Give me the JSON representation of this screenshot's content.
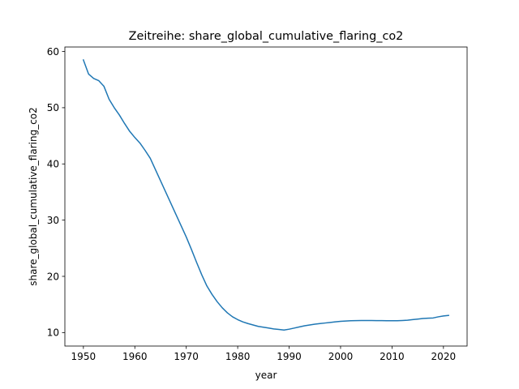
{
  "chart_data": {
    "type": "line",
    "title": "Zeitreihe: share_global_cumulative_flaring_co2",
    "xlabel": "year",
    "ylabel": "share_global_cumulative_flaring_co2",
    "xlim": [
      1946.4,
      2024.6
    ],
    "ylim": [
      7.6,
      60.8
    ],
    "x_ticks": [
      1950,
      1960,
      1970,
      1980,
      1990,
      2000,
      2010,
      2020
    ],
    "y_ticks": [
      10,
      20,
      30,
      40,
      50,
      60
    ],
    "grid": false,
    "legend": "none",
    "series": [
      {
        "color": "#1f77b4",
        "x": [
          1950,
          1951,
          1952,
          1953,
          1954,
          1955,
          1956,
          1957,
          1958,
          1959,
          1960,
          1961,
          1962,
          1963,
          1964,
          1965,
          1966,
          1967,
          1968,
          1969,
          1970,
          1971,
          1972,
          1973,
          1974,
          1975,
          1976,
          1977,
          1978,
          1979,
          1980,
          1981,
          1982,
          1983,
          1984,
          1985,
          1986,
          1987,
          1988,
          1989,
          1990,
          1991,
          1992,
          1993,
          1994,
          1995,
          1996,
          1997,
          1998,
          1999,
          2000,
          2001,
          2002,
          2003,
          2004,
          2005,
          2006,
          2007,
          2008,
          2009,
          2010,
          2011,
          2012,
          2013,
          2014,
          2015,
          2016,
          2017,
          2018,
          2019,
          2020,
          2021
        ],
        "y": [
          58.5,
          56.0,
          55.2,
          54.8,
          53.8,
          51.5,
          50.0,
          48.7,
          47.2,
          45.8,
          44.7,
          43.7,
          42.4,
          41.0,
          39.0,
          37.0,
          35.0,
          33.0,
          31.0,
          29.0,
          27.0,
          24.8,
          22.5,
          20.3,
          18.3,
          16.8,
          15.5,
          14.4,
          13.5,
          12.8,
          12.3,
          11.9,
          11.6,
          11.35,
          11.1,
          10.95,
          10.8,
          10.65,
          10.55,
          10.45,
          10.6,
          10.8,
          11.0,
          11.2,
          11.35,
          11.5,
          11.6,
          11.7,
          11.8,
          11.9,
          12.0,
          12.05,
          12.1,
          12.12,
          12.14,
          12.15,
          12.15,
          12.13,
          12.12,
          12.1,
          12.1,
          12.1,
          12.15,
          12.2,
          12.3,
          12.4,
          12.5,
          12.55,
          12.6,
          12.8,
          12.95,
          13.05
        ]
      }
    ]
  }
}
